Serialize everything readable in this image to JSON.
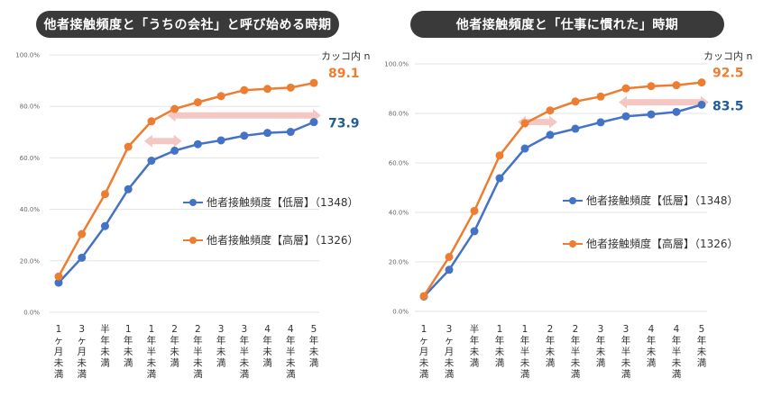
{
  "colors": {
    "low": "#4472C4",
    "high": "#ED7D31",
    "pill": "#3a3a3a",
    "arrow": "#F4C7C3",
    "low_label": "#1F5C99"
  },
  "chart_data": [
    {
      "type": "line",
      "title": "他者接触頻度と「うちの会社」と呼び始める時期",
      "note": "カッコ内 n",
      "ylim": [
        0,
        100
      ],
      "yticks": [
        "0.0%",
        "20.0%",
        "40.0%",
        "60.0%",
        "80.0%",
        "100.0%"
      ],
      "categories": [
        "1ヶ月未満",
        "3ヶ月未満",
        "半年未満",
        "1年未満",
        "1年半未満",
        "2年未満",
        "2年半未満",
        "3年未満",
        "3年半未満",
        "4年未満",
        "4年半未満",
        "5年未満"
      ],
      "series": [
        {
          "name": "他者接触頻度【低層】（1348）",
          "key": "low",
          "values": [
            11.5,
            21.2,
            33.5,
            47.8,
            58.9,
            62.8,
            65.3,
            66.8,
            68.6,
            69.7,
            70.1,
            73.9
          ]
        },
        {
          "name": "他者接触頻度【高層】（1326）",
          "key": "high",
          "values": [
            13.9,
            30.4,
            45.9,
            64.3,
            74.2,
            79.0,
            81.6,
            84.0,
            86.3,
            86.8,
            87.3,
            89.1
          ]
        }
      ],
      "end_labels": {
        "high": "89.1",
        "low": "73.9"
      },
      "arrows": [
        {
          "from": 4,
          "to": 5,
          "y": 66.5
        },
        {
          "from": 5,
          "to": 11,
          "y": 76.5
        }
      ]
    },
    {
      "type": "line",
      "title": "他者接触頻度と「仕事に慣れた」時期",
      "note": "カッコ内 n",
      "ylim": [
        0,
        100
      ],
      "yticks": [
        "0.0%",
        "20.0%",
        "40.0%",
        "60.0%",
        "80.0%",
        "100.0%"
      ],
      "categories": [
        "1ヶ月未満",
        "3ヶ月未満",
        "半年未満",
        "1年未満",
        "1年半未満",
        "2年未満",
        "2年半未満",
        "3年未満",
        "3年半未満",
        "4年未満",
        "4年半未満",
        "5年未満"
      ],
      "series": [
        {
          "name": "他者接触頻度【低層】（1348）",
          "key": "low",
          "values": [
            6.0,
            16.8,
            32.4,
            53.8,
            65.8,
            71.3,
            73.8,
            76.4,
            78.8,
            79.6,
            80.6,
            83.5
          ]
        },
        {
          "name": "他者接触頻度【高層】（1326）",
          "key": "high",
          "values": [
            6.2,
            22.0,
            40.6,
            63.0,
            76.0,
            81.2,
            84.8,
            86.8,
            90.1,
            91.0,
            91.4,
            92.5
          ]
        }
      ],
      "end_labels": {
        "high": "92.5",
        "low": "83.5"
      },
      "arrows": [
        {
          "from": 4,
          "to": 5,
          "y": 76.5
        },
        {
          "from": 8,
          "to": 11,
          "y": 84.5
        }
      ]
    }
  ]
}
